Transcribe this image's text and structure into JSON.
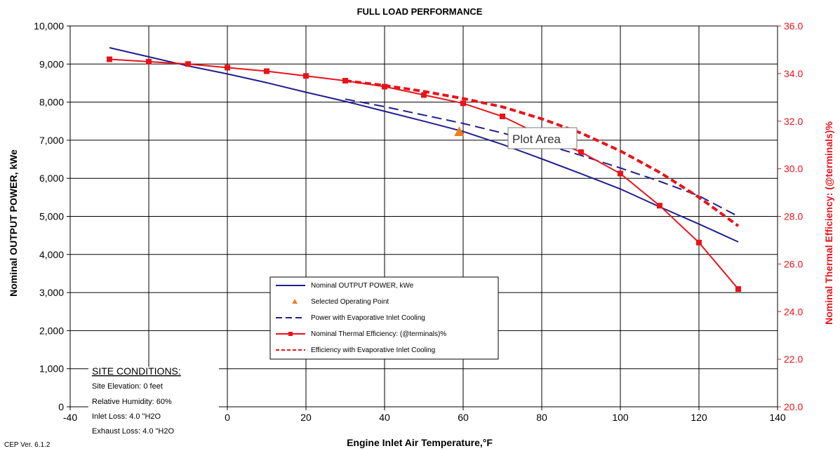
{
  "chart_data": {
    "type": "line",
    "title": "FULL LOAD PERFORMANCE",
    "xlabel": "Engine Inlet Air Temperature,°F",
    "ylabel": "Nominal OUTPUT  POWER, kWe",
    "y2label": "Nominal Thermal Efficiency: (@terminals)%",
    "xlim": [
      -40,
      140
    ],
    "ylim": [
      0,
      10000
    ],
    "y2lim": [
      20.0,
      36.0
    ],
    "x_ticks": [
      "-40",
      "-20",
      "0",
      "20",
      "40",
      "60",
      "80",
      "100",
      "120",
      "140"
    ],
    "y_ticks": [
      "0",
      "1,000",
      "2,000",
      "3,000",
      "4,000",
      "5,000",
      "6,000",
      "7,000",
      "8,000",
      "9,000",
      "10,000"
    ],
    "y2_ticks": [
      "20.0",
      "22.0",
      "24.0",
      "26.0",
      "28.0",
      "30.0",
      "32.0",
      "34.0",
      "36.0"
    ],
    "grid": true,
    "legend_position": "center-bottom",
    "series": [
      {
        "name": "Nominal OUTPUT POWER, kWe",
        "axis": "left",
        "color": "#1f1f8f",
        "style": "solid",
        "x": [
          -30,
          -20,
          -10,
          0,
          10,
          20,
          30,
          40,
          50,
          60,
          70,
          80,
          90,
          100,
          110,
          120,
          130
        ],
        "y": [
          9430,
          9190,
          8950,
          8740,
          8510,
          8260,
          8020,
          7760,
          7500,
          7230,
          6890,
          6510,
          6120,
          5720,
          5250,
          4800,
          4330
        ]
      },
      {
        "name": "Selected Operating Point",
        "axis": "left",
        "color": "#f07f1f",
        "style": "marker",
        "x": [
          59
        ],
        "y": [
          7200
        ]
      },
      {
        "name": "Power with Evaporative Inlet Cooling",
        "axis": "left",
        "color": "#1f1f8f",
        "style": "dashed",
        "x": [
          30,
          40,
          50,
          60,
          70,
          80,
          90,
          100,
          110,
          120,
          130
        ],
        "y": [
          8080,
          7880,
          7660,
          7440,
          7190,
          6910,
          6600,
          6270,
          5920,
          5540,
          5000
        ]
      },
      {
        "name": "Nominal Thermal Efficiency: (@terminals)%",
        "axis": "right",
        "color": "#e8131a",
        "style": "solid-square",
        "x": [
          -30,
          -20,
          -10,
          0,
          10,
          20,
          30,
          40,
          50,
          60,
          70,
          80,
          90,
          100,
          110,
          120,
          130
        ],
        "y": [
          34.6,
          34.5,
          34.4,
          34.25,
          34.1,
          33.9,
          33.7,
          33.45,
          33.1,
          32.75,
          32.2,
          31.4,
          30.7,
          29.8,
          28.45,
          26.9,
          24.95
        ]
      },
      {
        "name": "Efficiency with Evaporative Inlet Cooling",
        "axis": "right",
        "color": "#e8131a",
        "style": "dashed-bold",
        "x": [
          30,
          40,
          50,
          60,
          70,
          80,
          90,
          100,
          110,
          120,
          130
        ],
        "y": [
          33.7,
          33.5,
          33.25,
          32.95,
          32.6,
          32.1,
          31.5,
          30.75,
          29.85,
          28.8,
          27.6
        ]
      }
    ]
  },
  "site_conditions": {
    "title": "SITE CONDITIONS:",
    "lines": [
      "Site Elevation:  0 feet",
      "Relative Humidity:  60%",
      "Inlet Loss: 4.0 \"H2O",
      "Exhaust Loss: 4.0 \"H2O"
    ]
  },
  "tooltip": "Plot Area",
  "version": "CEP Ver. 6.1.2"
}
